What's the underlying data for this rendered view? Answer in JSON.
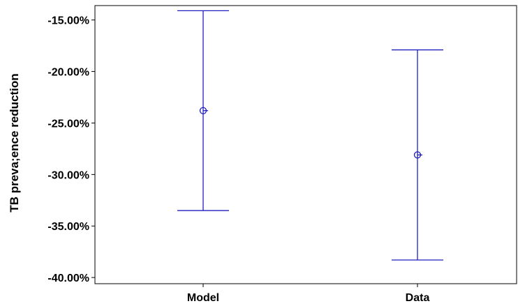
{
  "chart_data": {
    "type": "errorbar",
    "categories": [
      "Model",
      "Data"
    ],
    "points": [
      {
        "category": "Model",
        "mean": -23.8,
        "lower": -33.5,
        "upper": -14.1
      },
      {
        "category": "Data",
        "mean": -28.1,
        "lower": -38.3,
        "upper": -17.9
      }
    ],
    "ylabel": "TB preva;ence reduction",
    "xlabel": "",
    "ylim": [
      -40.6,
      -13.6
    ],
    "yticks": [
      -15,
      -20,
      -25,
      -30,
      -35,
      -40
    ],
    "ytick_labels": [
      "-15.00%",
      "-20.00%",
      "-25.00%",
      "-30.00%",
      "-35.00%",
      "-40.00%"
    ],
    "grid": false,
    "colors": {
      "series": "#1f1fbf",
      "axis": "#000000"
    }
  }
}
